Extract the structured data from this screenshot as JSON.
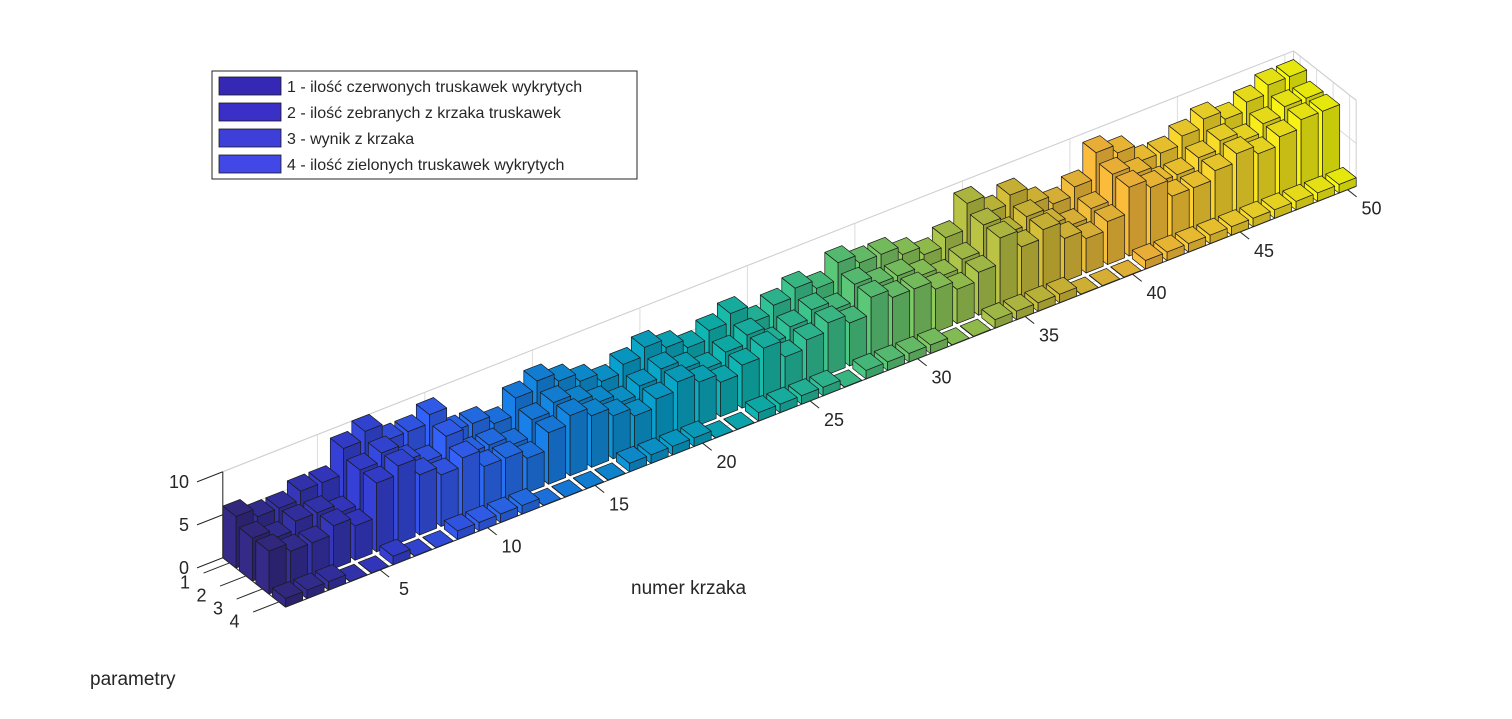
{
  "chart_data": {
    "type": "bar3",
    "title": "",
    "xlabel": "numer krzaka",
    "ylabel": "parametry",
    "zlabel": "",
    "x": [
      1,
      2,
      3,
      4,
      5,
      6,
      7,
      8,
      9,
      10,
      11,
      12,
      13,
      14,
      15,
      16,
      17,
      18,
      19,
      20,
      21,
      22,
      23,
      24,
      25,
      26,
      27,
      28,
      29,
      30,
      31,
      32,
      33,
      34,
      35,
      36,
      37,
      38,
      39,
      40,
      41,
      42,
      43,
      44,
      45,
      46,
      47,
      48,
      49,
      50
    ],
    "x_ticks": [
      5,
      10,
      15,
      20,
      25,
      30,
      35,
      40,
      45,
      50
    ],
    "x_tick_labels": [
      "5",
      "10",
      "15",
      "20",
      "25",
      "30",
      "35",
      "40",
      "45",
      "50"
    ],
    "y_ticks": [
      1,
      2,
      3,
      4
    ],
    "y_tick_labels": [
      "1",
      "2",
      "3",
      "4"
    ],
    "z_ticks": [
      0,
      5,
      10
    ],
    "z_tick_labels": [
      "0",
      "5",
      "10"
    ],
    "zlim": [
      0,
      10
    ],
    "grid": true,
    "colormap": "parula",
    "legend_placement": "top-left",
    "series": [
      {
        "name": "1 - ilość czerwonych truskawek wykrytych",
        "legend_color": "#3528b4",
        "values": [
          6,
          5,
          5,
          6,
          6,
          9,
          10,
          8,
          8,
          9,
          6,
          6,
          5,
          7,
          8,
          7,
          6,
          5,
          6,
          7,
          6,
          5,
          6,
          7,
          5,
          6,
          7,
          6,
          8,
          7,
          7,
          6,
          5,
          6,
          9,
          7,
          8,
          6,
          5,
          6,
          9,
          8,
          6,
          6,
          7,
          8,
          7,
          8,
          9,
          9
        ]
      },
      {
        "name": "2 - ilość zebranych z krzaka truskawek",
        "legend_color": "#3a30c8",
        "values": [
          5,
          4,
          5,
          5,
          4,
          8,
          9,
          7,
          6,
          8,
          5,
          5,
          4,
          6,
          7,
          6,
          5,
          4,
          5,
          6,
          5,
          4,
          5,
          6,
          4,
          5,
          6,
          5,
          7,
          6,
          6,
          5,
          4,
          5,
          8,
          6,
          7,
          5,
          4,
          5,
          8,
          7,
          5,
          5,
          6,
          7,
          6,
          7,
          8,
          8
        ]
      },
      {
        "name": "3 - wynik z krzaka",
        "legend_color": "#3e3ed8",
        "values": [
          5,
          4,
          4,
          5,
          4,
          8,
          9,
          7,
          6,
          7,
          5,
          5,
          4,
          6,
          7,
          6,
          5,
          4,
          5,
          6,
          5,
          4,
          5,
          6,
          4,
          5,
          6,
          5,
          7,
          6,
          6,
          5,
          4,
          5,
          8,
          6,
          7,
          5,
          4,
          5,
          8,
          7,
          5,
          5,
          6,
          7,
          6,
          7,
          8,
          8
        ]
      },
      {
        "name": "4 - ilość zielonych truskawek wykrytych",
        "legend_color": "#4148e6",
        "values": [
          1,
          1,
          1,
          0,
          0,
          1,
          0,
          0,
          1,
          1,
          1,
          1,
          0,
          0,
          0,
          0,
          1,
          1,
          1,
          1,
          0,
          0,
          1,
          1,
          1,
          1,
          0,
          1,
          1,
          1,
          1,
          0,
          0,
          1,
          1,
          1,
          1,
          0,
          0,
          0,
          1,
          1,
          1,
          1,
          1,
          1,
          1,
          1,
          1,
          1
        ]
      }
    ]
  }
}
